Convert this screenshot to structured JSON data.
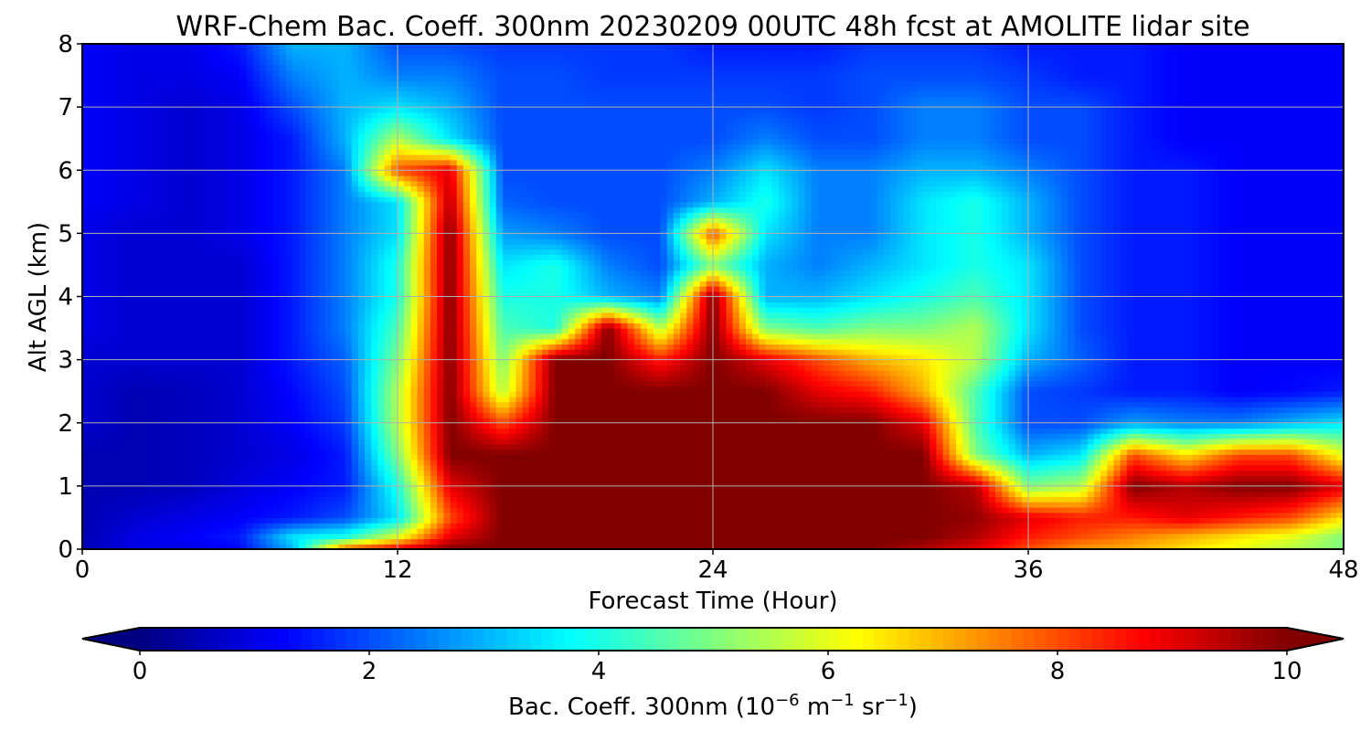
{
  "chart_data": {
    "type": "heatmap",
    "title": "WRF-Chem Bac. Coeff. 300nm  20230209 00UTC 48h fcst at AMOLITE lidar site",
    "xlabel": "Forecast Time (Hour)",
    "ylabel": "Alt AGL (km)",
    "xlim": [
      0,
      48
    ],
    "ylim": [
      0,
      8
    ],
    "x_ticks": [
      0,
      12,
      24,
      36,
      48
    ],
    "y_ticks": [
      0,
      1,
      2,
      3,
      4,
      5,
      6,
      7,
      8
    ],
    "grid": true,
    "colormap": "jet",
    "colorbar": {
      "label_prefix": "Bac. Coeff. 300nm  (10",
      "label_exp1": "−6",
      "label_mid": " m",
      "label_exp2": "−1",
      "label_mid2": " sr",
      "label_exp3": "−1",
      "label_suffix": ")",
      "range": [
        0,
        10
      ],
      "ticks": [
        0,
        2,
        4,
        6,
        8,
        10
      ],
      "extend": "both",
      "placement": "bottom"
    },
    "heights_km": [
      0.0,
      0.2,
      0.5,
      1.0,
      1.5,
      2.0,
      2.5,
      3.0,
      3.5,
      4.0,
      4.5,
      5.0,
      5.5,
      6.0,
      6.5,
      7.0,
      7.5,
      8.0
    ],
    "times_h": [
      0,
      2,
      4,
      6,
      8,
      10,
      12,
      14,
      16,
      18,
      20,
      22,
      24,
      26,
      28,
      30,
      32,
      34,
      36,
      38,
      40,
      42,
      44,
      46,
      48
    ],
    "values": [
      [
        0.5,
        1.0,
        1.0,
        1.3,
        3.0,
        8.0,
        9.0,
        10.0,
        10.0,
        10.0,
        10.0,
        10.0,
        10.0,
        10.0,
        10.0,
        10.0,
        9.5,
        9.0,
        8.0,
        7.2,
        7.0,
        6.5,
        6.0,
        5.5,
        5.0
      ],
      [
        0.5,
        1.0,
        1.2,
        1.5,
        3.5,
        4.0,
        6.0,
        9.0,
        10.0,
        10.0,
        10.0,
        10.0,
        10.0,
        10.0,
        10.0,
        10.0,
        10.0,
        9.5,
        8.5,
        8.0,
        7.5,
        7.0,
        6.5,
        6.0,
        5.0
      ],
      [
        0.5,
        0.8,
        1.0,
        1.2,
        1.5,
        2.0,
        3.5,
        8.0,
        10.0,
        10.0,
        10.0,
        10.0,
        10.0,
        10.0,
        10.0,
        10.0,
        10.0,
        9.8,
        9.0,
        8.5,
        8.5,
        9.0,
        8.5,
        8.0,
        6.5
      ],
      [
        0.5,
        0.5,
        0.6,
        0.9,
        1.2,
        1.5,
        4.0,
        9.0,
        10.0,
        10.0,
        10.0,
        10.0,
        10.0,
        10.0,
        10.0,
        10.0,
        10.0,
        9.5,
        5.0,
        5.5,
        10.0,
        9.5,
        10.0,
        10.0,
        9.0
      ],
      [
        0.5,
        0.5,
        0.6,
        0.8,
        1.0,
        1.5,
        5.0,
        10.0,
        10.0,
        10.0,
        10.0,
        10.0,
        10.0,
        10.0,
        10.0,
        10.0,
        10.0,
        5.0,
        3.0,
        3.5,
        8.0,
        6.5,
        8.0,
        8.0,
        6.0
      ],
      [
        0.8,
        0.5,
        0.6,
        0.8,
        1.2,
        1.8,
        5.5,
        10.0,
        8.0,
        10.0,
        10.0,
        10.0,
        10.0,
        10.0,
        10.0,
        10.0,
        9.0,
        4.5,
        2.0,
        2.0,
        2.8,
        2.5,
        2.5,
        3.0,
        3.5
      ],
      [
        0.8,
        0.5,
        0.6,
        0.8,
        1.3,
        2.0,
        5.5,
        10.0,
        5.5,
        10.0,
        10.0,
        10.0,
        10.0,
        10.0,
        9.0,
        8.5,
        7.0,
        4.5,
        2.0,
        1.8,
        1.5,
        1.5,
        1.2,
        1.3,
        1.5
      ],
      [
        0.8,
        0.8,
        0.8,
        0.8,
        1.5,
        2.2,
        5.0,
        10.0,
        5.0,
        10.0,
        10.0,
        8.5,
        10.0,
        9.0,
        8.0,
        7.0,
        6.5,
        5.5,
        3.0,
        2.2,
        1.5,
        1.5,
        1.2,
        1.2,
        1.2
      ],
      [
        1.0,
        0.8,
        0.8,
        0.8,
        1.5,
        2.5,
        4.5,
        10.0,
        4.5,
        4.0,
        10.0,
        5.5,
        10.0,
        5.0,
        4.5,
        5.0,
        5.0,
        5.5,
        3.5,
        2.0,
        1.5,
        1.5,
        1.2,
        1.2,
        1.2
      ],
      [
        1.0,
        0.8,
        0.8,
        0.8,
        1.5,
        2.5,
        4.0,
        10.0,
        4.0,
        4.0,
        3.0,
        2.5,
        10.0,
        3.0,
        3.0,
        3.5,
        4.0,
        4.5,
        3.5,
        2.0,
        1.5,
        1.5,
        1.2,
        1.2,
        1.2
      ],
      [
        1.0,
        0.8,
        0.8,
        0.8,
        1.5,
        2.5,
        4.0,
        10.0,
        3.5,
        4.0,
        2.5,
        2.0,
        5.0,
        3.0,
        2.5,
        3.0,
        3.5,
        4.0,
        3.5,
        2.0,
        1.5,
        1.5,
        1.2,
        1.2,
        1.2
      ],
      [
        1.0,
        0.8,
        0.8,
        1.0,
        1.5,
        2.5,
        3.5,
        10.0,
        2.8,
        2.5,
        2.0,
        2.0,
        8.0,
        3.5,
        2.5,
        2.5,
        3.5,
        4.0,
        3.0,
        2.0,
        1.5,
        1.5,
        1.2,
        1.2,
        1.2
      ],
      [
        1.2,
        1.0,
        0.8,
        1.0,
        1.5,
        2.5,
        3.5,
        9.5,
        2.2,
        2.0,
        2.0,
        2.0,
        3.0,
        4.0,
        2.5,
        2.5,
        3.5,
        4.0,
        3.0,
        2.0,
        1.5,
        1.5,
        1.2,
        1.2,
        1.2
      ],
      [
        1.2,
        1.0,
        0.8,
        1.0,
        1.5,
        2.5,
        8.0,
        9.0,
        2.0,
        2.0,
        2.0,
        2.0,
        2.5,
        3.5,
        2.5,
        2.5,
        3.0,
        3.0,
        2.5,
        2.0,
        1.5,
        1.5,
        1.2,
        1.2,
        1.2
      ],
      [
        1.2,
        1.0,
        0.8,
        1.0,
        1.5,
        3.0,
        5.5,
        3.5,
        2.0,
        2.0,
        2.0,
        2.0,
        2.0,
        2.5,
        2.0,
        2.0,
        2.5,
        2.5,
        2.0,
        2.0,
        1.5,
        1.2,
        1.2,
        1.2,
        1.2
      ],
      [
        1.2,
        1.0,
        0.8,
        1.0,
        2.0,
        3.0,
        3.5,
        3.0,
        2.0,
        2.0,
        2.0,
        2.0,
        2.0,
        2.0,
        1.8,
        2.0,
        2.5,
        2.5,
        2.0,
        2.0,
        1.5,
        1.2,
        1.2,
        1.2,
        1.2
      ],
      [
        1.2,
        1.0,
        1.0,
        1.2,
        2.5,
        3.0,
        2.5,
        2.5,
        2.0,
        2.0,
        1.8,
        1.8,
        1.8,
        1.8,
        1.8,
        2.0,
        2.0,
        2.0,
        1.8,
        1.5,
        1.5,
        1.2,
        1.2,
        1.2,
        1.2
      ],
      [
        1.2,
        1.0,
        1.0,
        1.5,
        3.0,
        3.0,
        2.0,
        2.0,
        1.8,
        1.8,
        1.8,
        1.8,
        1.5,
        1.5,
        1.5,
        1.8,
        1.8,
        1.8,
        1.5,
        1.5,
        1.5,
        1.2,
        1.2,
        1.2,
        1.2
      ]
    ]
  }
}
